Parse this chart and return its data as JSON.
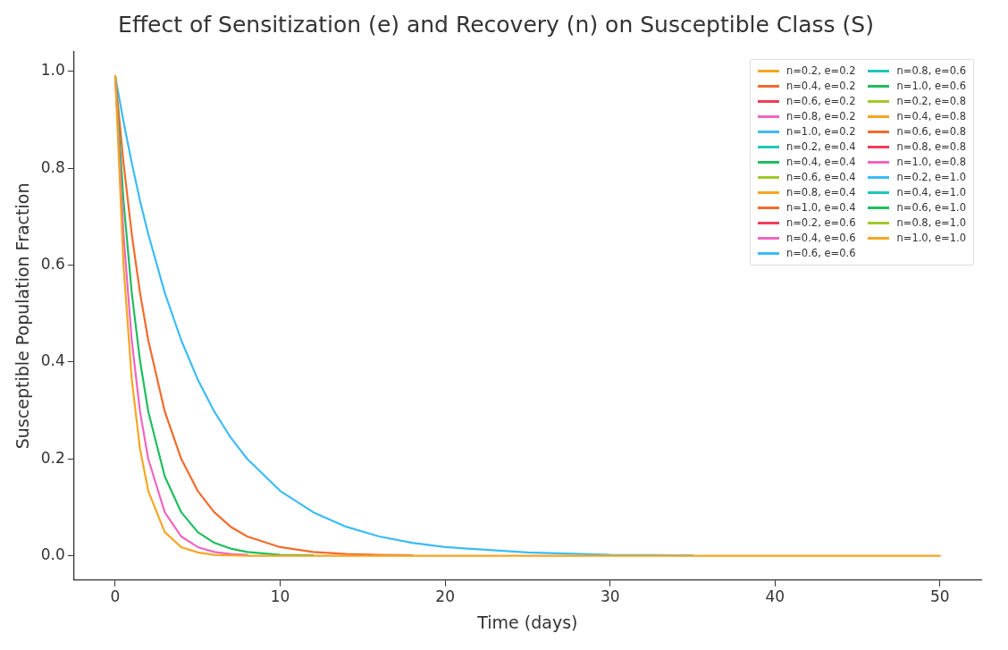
{
  "chart_data": {
    "type": "line",
    "title": "Effect of Sensitization (e) and Recovery (n) on Susceptible Class (S)",
    "xlabel": "Time (days)",
    "ylabel": "Susceptible Population Fraction",
    "legend": "top right",
    "marker": "none",
    "line_style": "solid",
    "xlim": [
      -2.5,
      52.5
    ],
    "xticks": [
      0,
      10,
      20,
      30,
      40,
      50
    ],
    "ylim": [
      -0.05,
      1.04
    ],
    "yticks": [
      {
        "value": 0,
        "label": "0.0"
      },
      {
        "value": 0.2,
        "label": "0.2"
      },
      {
        "value": 0.4,
        "label": "0.4"
      },
      {
        "value": 0.6,
        "label": "0.6"
      },
      {
        "value": 0.8,
        "label": "0.8"
      },
      {
        "value": 1.0,
        "label": "1.0"
      }
    ],
    "x": [
      0,
      0.5,
      1,
      1.5,
      2,
      3,
      4,
      5,
      6,
      7,
      8,
      10,
      12,
      14,
      16,
      18,
      20,
      25,
      30,
      35,
      40,
      50
    ],
    "series": [
      {
        "name": "n=0.2, e=0.2",
        "color": "#f5a623",
        "values": [
          null,
          null,
          null,
          null,
          null,
          null,
          null,
          null,
          null,
          null,
          null,
          null,
          null,
          null,
          null,
          null,
          null,
          null,
          null,
          null,
          null,
          null
        ]
      },
      {
        "name": "n=0.4, e=0.2",
        "color": "#f26b2b",
        "values": [
          null,
          null,
          null,
          null,
          null,
          null,
          null,
          null,
          null,
          null,
          null,
          null,
          null,
          null,
          null,
          null,
          null,
          null,
          null,
          null,
          null,
          null
        ]
      },
      {
        "name": "n=0.6, e=0.2",
        "color": "#f03c5a",
        "values": [
          null,
          null,
          null,
          null,
          null,
          null,
          null,
          null,
          null,
          null,
          null,
          null,
          null,
          null,
          null,
          null,
          null,
          null,
          null,
          null,
          null,
          null
        ]
      },
      {
        "name": "n=0.8, e=0.2",
        "color": "#f066c0",
        "values": [
          null,
          null,
          null,
          null,
          null,
          null,
          null,
          null,
          null,
          null,
          null,
          null,
          null,
          null,
          null,
          null,
          null,
          null,
          null,
          null,
          null,
          null
        ]
      },
      {
        "name": "n=1.0, e=0.2",
        "color": "#3cbcf5",
        "values": [
          0.99,
          0.896,
          0.811,
          0.733,
          0.664,
          0.543,
          0.445,
          0.364,
          0.298,
          0.244,
          0.2,
          0.134,
          0.09,
          0.06,
          0.04,
          0.027,
          0.018,
          0.007,
          0.002,
          0.001,
          null,
          null
        ]
      },
      {
        "name": "n=0.2, e=0.4",
        "color": "#1ec8b8",
        "values": [
          null,
          null,
          null,
          null,
          null,
          null,
          null,
          null,
          null,
          null,
          null,
          null,
          null,
          null,
          null,
          null,
          null,
          null,
          null,
          null,
          null,
          null
        ]
      },
      {
        "name": "n=0.4, e=0.4",
        "color": "#1ebe5e",
        "values": [
          null,
          null,
          null,
          null,
          null,
          null,
          null,
          null,
          null,
          null,
          null,
          null,
          null,
          null,
          null,
          null,
          null,
          null,
          null,
          null,
          null,
          null
        ]
      },
      {
        "name": "n=0.6, e=0.4",
        "color": "#a2c82a",
        "values": [
          null,
          null,
          null,
          null,
          null,
          null,
          null,
          null,
          null,
          null,
          null,
          null,
          null,
          null,
          null,
          null,
          null,
          null,
          null,
          null,
          null,
          null
        ]
      },
      {
        "name": "n=0.8, e=0.4",
        "color": "#f5a623",
        "values": [
          null,
          null,
          null,
          null,
          null,
          null,
          null,
          null,
          null,
          null,
          null,
          null,
          null,
          null,
          null,
          null,
          null,
          null,
          null,
          null,
          null,
          null
        ]
      },
      {
        "name": "n=1.0, e=0.4",
        "color": "#f26b2b",
        "values": [
          0.99,
          0.811,
          0.664,
          0.543,
          0.445,
          0.298,
          0.2,
          0.134,
          0.09,
          0.06,
          0.04,
          0.018,
          0.008,
          0.004,
          0.002,
          0.001,
          null,
          null,
          null,
          null,
          null,
          null
        ]
      },
      {
        "name": "n=0.2, e=0.6",
        "color": "#f03c5a",
        "values": [
          null,
          null,
          null,
          null,
          null,
          null,
          null,
          null,
          null,
          null,
          null,
          null,
          null,
          null,
          null,
          null,
          null,
          null,
          null,
          null,
          null,
          null
        ]
      },
      {
        "name": "n=0.4, e=0.6",
        "color": "#f066c0",
        "values": [
          null,
          null,
          null,
          null,
          null,
          null,
          null,
          null,
          null,
          null,
          null,
          null,
          null,
          null,
          null,
          null,
          null,
          null,
          null,
          null,
          null,
          null
        ]
      },
      {
        "name": "n=0.6, e=0.6",
        "color": "#3cbcf5",
        "values": [
          null,
          null,
          null,
          null,
          null,
          null,
          null,
          null,
          null,
          null,
          null,
          null,
          null,
          null,
          null,
          null,
          null,
          null,
          null,
          null,
          null,
          null
        ]
      },
      {
        "name": "n=0.8, e=0.6",
        "color": "#1ec8b8",
        "values": [
          null,
          null,
          null,
          null,
          null,
          null,
          null,
          null,
          null,
          null,
          null,
          null,
          null,
          null,
          null,
          null,
          null,
          null,
          null,
          null,
          null,
          null
        ]
      },
      {
        "name": "n=1.0, e=0.6",
        "color": "#1ebe5e",
        "values": [
          0.99,
          0.733,
          0.543,
          0.403,
          0.298,
          0.164,
          0.09,
          0.049,
          0.027,
          0.015,
          0.008,
          0.002,
          0.001,
          null,
          null,
          null,
          null,
          null,
          null,
          null,
          null,
          null
        ]
      },
      {
        "name": "n=0.2, e=0.8",
        "color": "#a2c82a",
        "values": [
          null,
          null,
          null,
          null,
          null,
          null,
          null,
          null,
          null,
          null,
          null,
          null,
          null,
          null,
          null,
          null,
          null,
          null,
          null,
          null,
          null,
          null
        ]
      },
      {
        "name": "n=0.4, e=0.8",
        "color": "#f5a623",
        "values": [
          null,
          null,
          null,
          null,
          null,
          null,
          null,
          null,
          null,
          null,
          null,
          null,
          null,
          null,
          null,
          null,
          null,
          null,
          null,
          null,
          null,
          null
        ]
      },
      {
        "name": "n=0.6, e=0.8",
        "color": "#f26b2b",
        "values": [
          null,
          null,
          null,
          null,
          null,
          null,
          null,
          null,
          null,
          null,
          null,
          null,
          null,
          null,
          null,
          null,
          null,
          null,
          null,
          null,
          null,
          null
        ]
      },
      {
        "name": "n=0.8, e=0.8",
        "color": "#f03c5a",
        "values": [
          null,
          null,
          null,
          null,
          null,
          null,
          null,
          null,
          null,
          null,
          null,
          null,
          null,
          null,
          null,
          null,
          null,
          null,
          null,
          null,
          null,
          null
        ]
      },
      {
        "name": "n=1.0, e=0.8",
        "color": "#f066c0",
        "values": [
          0.99,
          0.664,
          0.445,
          0.298,
          0.2,
          0.09,
          0.04,
          0.018,
          0.008,
          0.004,
          0.002,
          null,
          null,
          null,
          null,
          null,
          null,
          null,
          null,
          null,
          null,
          null
        ]
      },
      {
        "name": "n=0.2, e=1.0",
        "color": "#3cbcf5",
        "values": [
          null,
          null,
          null,
          null,
          null,
          null,
          null,
          null,
          null,
          null,
          null,
          null,
          null,
          null,
          null,
          null,
          null,
          null,
          null,
          null,
          null,
          null
        ]
      },
      {
        "name": "n=0.4, e=1.0",
        "color": "#1ec8b8",
        "values": [
          null,
          null,
          null,
          null,
          null,
          null,
          null,
          null,
          null,
          null,
          null,
          null,
          null,
          null,
          null,
          null,
          null,
          null,
          null,
          null,
          null,
          null
        ]
      },
      {
        "name": "n=0.6, e=1.0",
        "color": "#1ebe5e",
        "values": [
          null,
          null,
          null,
          null,
          null,
          null,
          null,
          null,
          null,
          null,
          null,
          null,
          null,
          null,
          null,
          null,
          null,
          null,
          null,
          null,
          null,
          null
        ]
      },
      {
        "name": "n=0.8, e=1.0",
        "color": "#a2c82a",
        "values": [
          null,
          null,
          null,
          null,
          null,
          null,
          null,
          null,
          null,
          null,
          null,
          null,
          null,
          null,
          null,
          null,
          null,
          null,
          null,
          null,
          null,
          null
        ]
      },
      {
        "name": "n=1.0, e=1.0",
        "color": "#f5a623",
        "values": [
          0.99,
          0.6,
          0.364,
          0.221,
          0.134,
          0.049,
          0.018,
          0.007,
          0.002,
          0.001,
          0,
          0,
          0,
          0,
          0,
          0,
          0,
          0,
          0,
          0,
          0,
          0
        ]
      }
    ]
  }
}
